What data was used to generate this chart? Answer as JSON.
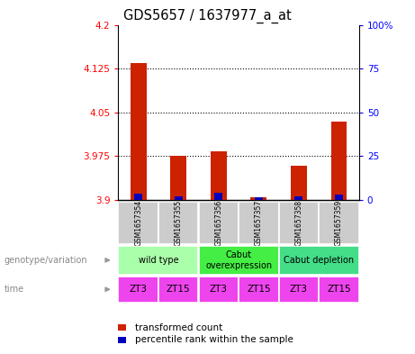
{
  "title": "GDS5657 / 1637977_a_at",
  "samples": [
    "GSM1657354",
    "GSM1657355",
    "GSM1657356",
    "GSM1657357",
    "GSM1657358",
    "GSM1657359"
  ],
  "transformed_counts": [
    4.135,
    3.975,
    3.983,
    3.905,
    3.958,
    4.035
  ],
  "percentile_ranks": [
    3.5,
    2.0,
    4.0,
    1.5,
    2.0,
    3.0
  ],
  "ylim_left": [
    3.9,
    4.2
  ],
  "ylim_right": [
    0,
    100
  ],
  "yticks_left": [
    3.9,
    3.975,
    4.05,
    4.125,
    4.2
  ],
  "yticks_right": [
    0,
    25,
    50,
    75,
    100
  ],
  "ytick_labels_left": [
    "3.9",
    "3.975",
    "4.05",
    "4.125",
    "4.2"
  ],
  "ytick_labels_right": [
    "0",
    "25",
    "50",
    "75",
    "100%"
  ],
  "genotype_groups": [
    {
      "label": "wild type",
      "span": [
        0,
        2
      ],
      "color": "#AAFFAA"
    },
    {
      "label": "Cabut\noverexpression",
      "span": [
        2,
        4
      ],
      "color": "#44EE44"
    },
    {
      "label": "Cabut depletion",
      "span": [
        4,
        6
      ],
      "color": "#44DD88"
    }
  ],
  "time_labels": [
    "ZT3",
    "ZT15",
    "ZT3",
    "ZT15",
    "ZT3",
    "ZT15"
  ],
  "time_color": "#EE44EE",
  "sample_bg_color": "#CCCCCC",
  "bar_color_red": "#CC2200",
  "bar_color_blue": "#0000BB",
  "bar_width": 0.4,
  "blue_bar_width": 0.2,
  "genotype_row_label": "genotype/variation",
  "time_row_label": "time",
  "legend_red": "transformed count",
  "legend_blue": "percentile rank within the sample"
}
